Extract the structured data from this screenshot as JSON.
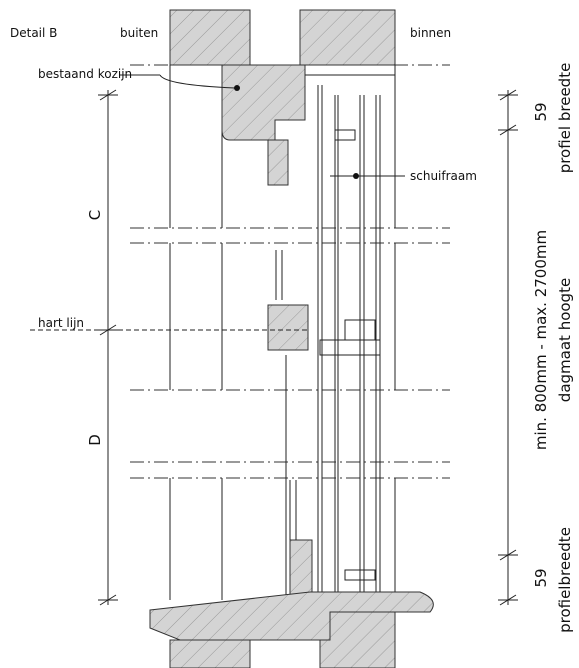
{
  "title": "Detail B",
  "sides": {
    "outside": "buiten",
    "inside": "binnen"
  },
  "callouts": {
    "existing_frame": "bestaand kozijn",
    "sliding_window": "schuifraam",
    "center_line": "hart lijn"
  },
  "zones": [
    "C",
    "D"
  ],
  "dimensions": {
    "top": {
      "value": 59,
      "label": "profiel breedte"
    },
    "overall": {
      "range": "min. 800mm - max. 2700mm",
      "label": "dagmaat hoogte"
    },
    "bottom": {
      "value": 59,
      "label": "profielbreedte"
    }
  }
}
